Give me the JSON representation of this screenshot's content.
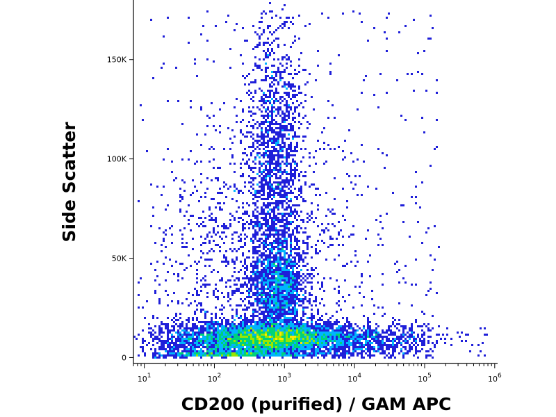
{
  "chart_data": {
    "type": "scatter",
    "subtype": "flow-cytometry density dot plot",
    "xlabel": "CD200 (purified) / GAM APC",
    "ylabel": "Side Scatter",
    "x_scale": "log",
    "xlim": [
      7,
      1100000
    ],
    "ylim": [
      -3000,
      180000
    ],
    "x_ticks": [
      {
        "value": 10,
        "base": "10",
        "exp": "1"
      },
      {
        "value": 100,
        "base": "10",
        "exp": "2"
      },
      {
        "value": 1000,
        "base": "10",
        "exp": "3"
      },
      {
        "value": 10000,
        "base": "10",
        "exp": "4"
      },
      {
        "value": 100000,
        "base": "10",
        "exp": "5"
      },
      {
        "value": 1000000,
        "base": "10",
        "exp": "6"
      }
    ],
    "y_ticks": [
      {
        "value": 0,
        "label": "0"
      },
      {
        "value": 50000,
        "label": "50K"
      },
      {
        "value": 100000,
        "label": "100K"
      },
      {
        "value": 150000,
        "label": "150K"
      }
    ],
    "grid": false,
    "legend": "none",
    "color_scale": [
      "#1f1fd9",
      "#00b4ff",
      "#00d27a",
      "#9ae600",
      "#ffe800",
      "#ff8a00",
      "#e00000"
    ],
    "populations": [
      {
        "x_center": 800,
        "y_center": 10000,
        "x_spread_decades": 0.45,
        "y_spread": 3500,
        "density": "highest"
      },
      {
        "x_center": 2500,
        "y_center": 9000,
        "x_spread_decades": 0.9,
        "y_spread": 4000,
        "density": "high"
      },
      {
        "x_center": 150,
        "y_center": 7000,
        "x_spread_decades": 0.5,
        "y_spread": 6000,
        "density": "high"
      },
      {
        "x_center": 750,
        "y_center": 100000,
        "x_spread_decades": 0.2,
        "y_spread": 32000,
        "density": "medium"
      },
      {
        "x_center": 800,
        "y_center": 35000,
        "x_spread_decades": 0.2,
        "y_spread": 12000,
        "density": "medium"
      },
      {
        "x_center": 400,
        "y_center": 45000,
        "x_spread_decades": 0.7,
        "y_spread": 38000,
        "density": "low"
      }
    ]
  }
}
